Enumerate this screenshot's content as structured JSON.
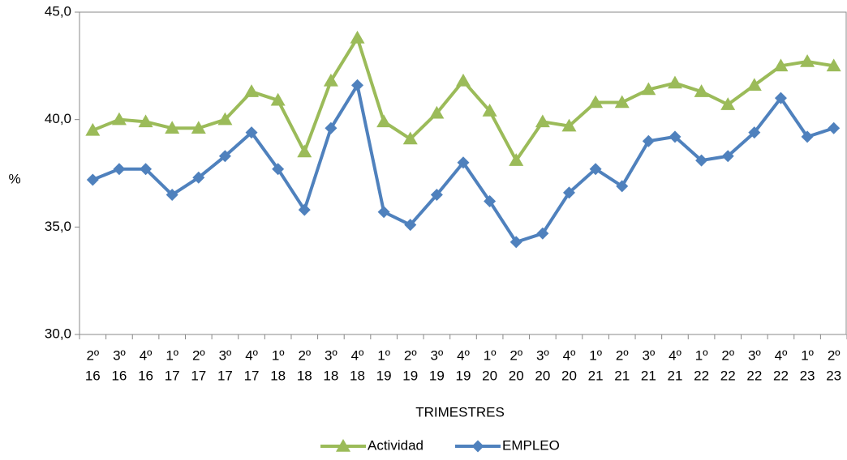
{
  "chart_data": {
    "type": "line",
    "title": "",
    "xlabel": "TRIMESTRES",
    "ylabel": "%",
    "ylim": [
      30,
      45
    ],
    "yticks": [
      "30,0",
      "35,0",
      "40,0",
      "45,0"
    ],
    "yticks_values": [
      30,
      35,
      40,
      45
    ],
    "grid": false,
    "legend_position": "bottom",
    "categories": [
      {
        "q": "2º",
        "y": "16"
      },
      {
        "q": "3º",
        "y": "16"
      },
      {
        "q": "4º",
        "y": "16"
      },
      {
        "q": "1º",
        "y": "17"
      },
      {
        "q": "2º",
        "y": "17"
      },
      {
        "q": "3º",
        "y": "17"
      },
      {
        "q": "4º",
        "y": "17"
      },
      {
        "q": "1º",
        "y": "18"
      },
      {
        "q": "2º",
        "y": "18"
      },
      {
        "q": "3º",
        "y": "18"
      },
      {
        "q": "4º",
        "y": "18"
      },
      {
        "q": "1º",
        "y": "19"
      },
      {
        "q": "2º",
        "y": "19"
      },
      {
        "q": "3º",
        "y": "19"
      },
      {
        "q": "4º",
        "y": "19"
      },
      {
        "q": "1º",
        "y": "20"
      },
      {
        "q": "2º",
        "y": "20"
      },
      {
        "q": "3º",
        "y": "20"
      },
      {
        "q": "4º",
        "y": "20"
      },
      {
        "q": "1º",
        "y": "21"
      },
      {
        "q": "2º",
        "y": "21"
      },
      {
        "q": "3º",
        "y": "21"
      },
      {
        "q": "4º",
        "y": "21"
      },
      {
        "q": "1º",
        "y": "22"
      },
      {
        "q": "2º",
        "y": "22"
      },
      {
        "q": "3º",
        "y": "22"
      },
      {
        "q": "4º",
        "y": "22"
      },
      {
        "q": "1º",
        "y": "23"
      },
      {
        "q": "2º",
        "y": "23"
      }
    ],
    "series": [
      {
        "name": "Actividad",
        "color": "#9BBB59",
        "marker": "triangle",
        "values": [
          39.5,
          40.0,
          39.9,
          39.6,
          39.6,
          40.0,
          41.3,
          40.9,
          38.5,
          41.8,
          43.8,
          39.9,
          39.1,
          40.3,
          41.8,
          40.4,
          38.1,
          39.9,
          39.7,
          40.8,
          40.8,
          41.4,
          41.7,
          41.3,
          40.7,
          41.6,
          42.5,
          42.7,
          42.5
        ]
      },
      {
        "name": "EMPLEO",
        "color": "#4F81BD",
        "marker": "diamond",
        "values": [
          37.2,
          37.7,
          37.7,
          36.5,
          37.3,
          38.3,
          39.4,
          37.7,
          35.8,
          39.6,
          41.6,
          35.7,
          35.1,
          36.5,
          38.0,
          36.2,
          34.3,
          34.7,
          36.6,
          37.7,
          36.9,
          39.0,
          39.2,
          38.1,
          38.3,
          39.4,
          41.0,
          39.2,
          39.6
        ]
      }
    ]
  }
}
